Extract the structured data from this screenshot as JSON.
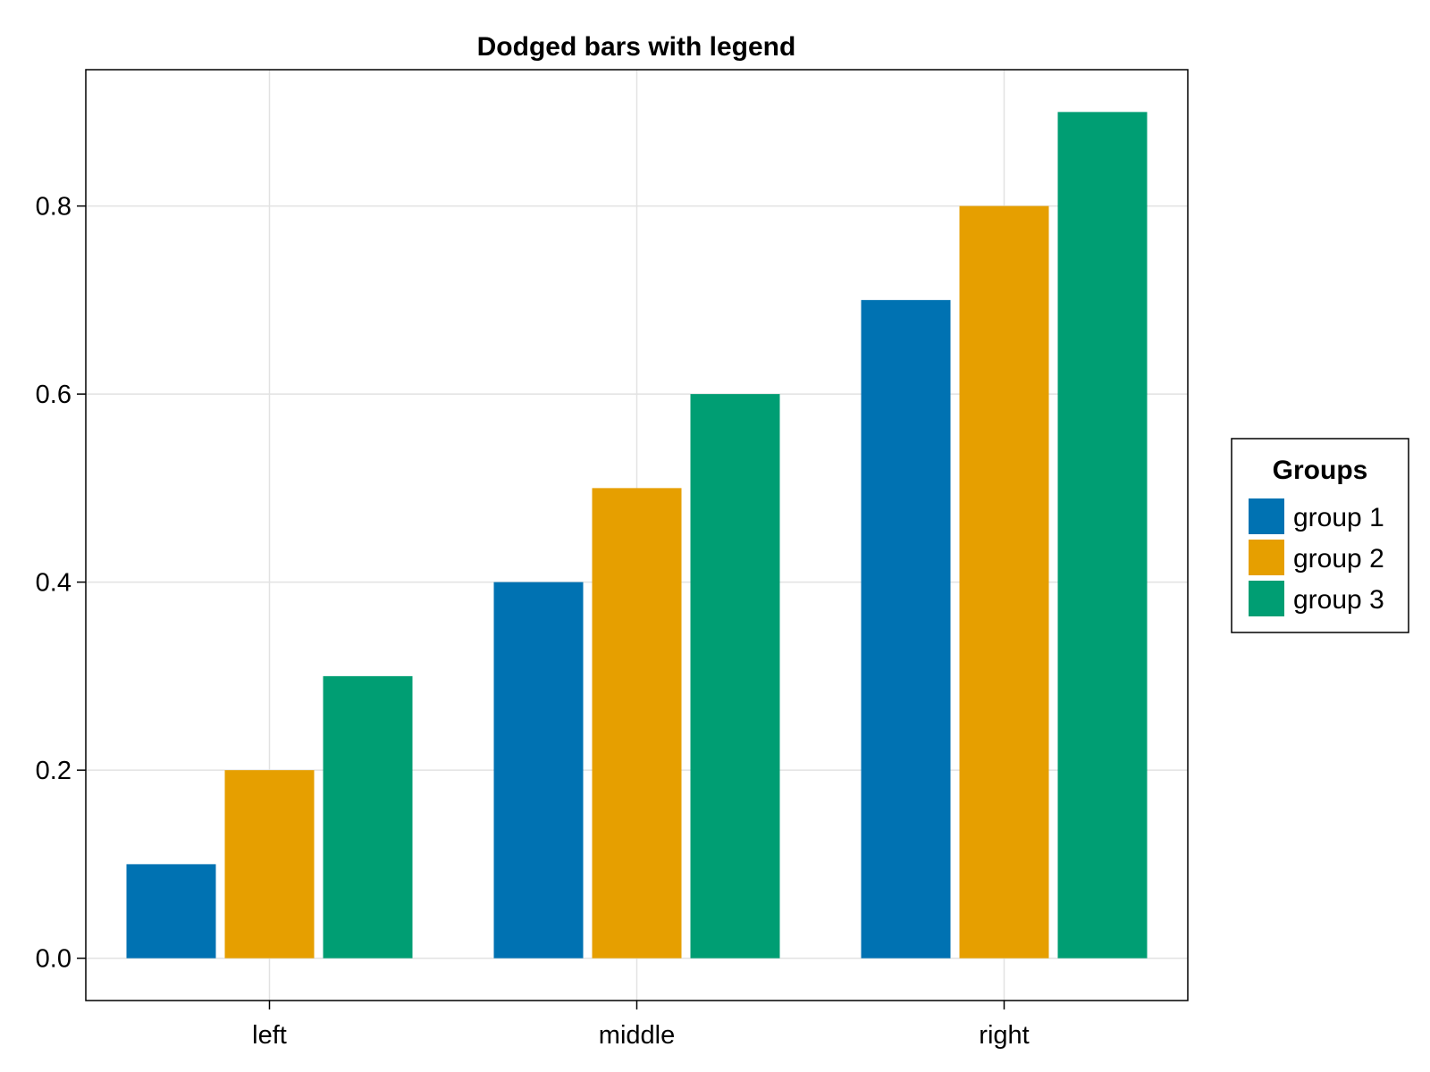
{
  "chart_data": {
    "type": "bar",
    "title": "Dodged bars with legend",
    "xlabel": "",
    "ylabel": "",
    "categories": [
      "left",
      "middle",
      "right"
    ],
    "series": [
      {
        "name": "group 1",
        "values": [
          0.1,
          0.4,
          0.7
        ],
        "color": "#0072b2"
      },
      {
        "name": "group 2",
        "values": [
          0.2,
          0.5,
          0.8
        ],
        "color": "#e69f00"
      },
      {
        "name": "group 3",
        "values": [
          0.3,
          0.6,
          0.9
        ],
        "color": "#009e73"
      }
    ],
    "ylim": [
      -0.045,
      0.945
    ],
    "yticks": [
      0.0,
      0.2,
      0.4,
      0.6,
      0.8
    ],
    "ytick_labels": [
      "0.0",
      "0.2",
      "0.4",
      "0.6",
      "0.8"
    ],
    "grid": true,
    "legend": {
      "title": "Groups",
      "placement": "right"
    }
  }
}
